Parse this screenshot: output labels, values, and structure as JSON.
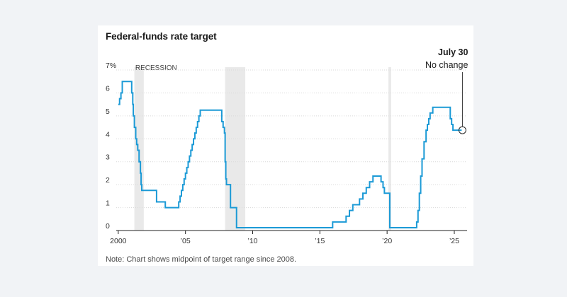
{
  "chart_data": {
    "type": "line",
    "title": "Federal-funds rate target",
    "note": "Note: Chart shows midpoint of target range since 2008.",
    "xlabel": "",
    "ylabel": "",
    "xlim": [
      1999.85,
      2025.95
    ],
    "ylim": [
      0,
      7
    ],
    "grid": true,
    "y_ticks": [
      {
        "value": 0,
        "label": "0"
      },
      {
        "value": 1,
        "label": "1"
      },
      {
        "value": 2,
        "label": "2"
      },
      {
        "value": 3,
        "label": "3"
      },
      {
        "value": 4,
        "label": "4"
      },
      {
        "value": 5,
        "label": "5"
      },
      {
        "value": 6,
        "label": "6"
      },
      {
        "value": 7,
        "label": "7%"
      }
    ],
    "x_ticks": [
      {
        "value": 2000,
        "label": "2000"
      },
      {
        "value": 2005,
        "label": "’05"
      },
      {
        "value": 2010,
        "label": "’10"
      },
      {
        "value": 2015,
        "label": "’15"
      },
      {
        "value": 2020,
        "label": "’20"
      },
      {
        "value": 2025,
        "label": "’25"
      }
    ],
    "recessions": [
      {
        "start": 2001.2,
        "end": 2001.9,
        "label": "RECESSION"
      },
      {
        "start": 2007.95,
        "end": 2009.45,
        "label": ""
      },
      {
        "start": 2020.1,
        "end": 2020.3,
        "label": ""
      }
    ],
    "series": [
      {
        "name": "Federal-funds rate target",
        "color": "#1b9ad6",
        "x": [
          2000.0,
          2000.1,
          2000.2,
          2000.3,
          2000.45,
          2001.0,
          2001.08,
          2001.12,
          2001.2,
          2001.3,
          2001.37,
          2001.45,
          2001.55,
          2001.65,
          2001.7,
          2001.75,
          2001.82,
          2001.9,
          2001.95,
          2002.85,
          2003.5,
          2004.5,
          2004.6,
          2004.7,
          2004.8,
          2004.9,
          2005.0,
          2005.1,
          2005.2,
          2005.3,
          2005.4,
          2005.5,
          2005.6,
          2005.7,
          2005.8,
          2005.9,
          2006.0,
          2006.1,
          2006.2,
          2006.3,
          2006.4,
          2006.5,
          2007.7,
          2007.8,
          2007.9,
          2007.95,
          2008.0,
          2008.05,
          2008.15,
          2008.25,
          2008.35,
          2008.8,
          2008.85,
          2008.95,
          2009.0,
          2015.95,
          2016.95,
          2017.2,
          2017.45,
          2017.95,
          2018.2,
          2018.45,
          2018.7,
          2018.95,
          2019.55,
          2019.7,
          2019.8,
          2020.2,
          2022.2,
          2022.3,
          2022.4,
          2022.5,
          2022.6,
          2022.75,
          2022.9,
          2023.0,
          2023.1,
          2023.2,
          2023.4,
          2023.55,
          2024.7,
          2024.8,
          2024.9,
          2025.55
        ],
        "values": [
          5.5,
          5.75,
          6.0,
          6.5,
          6.5,
          6.0,
          5.5,
          5.0,
          4.5,
          4.0,
          3.75,
          3.5,
          3.0,
          2.5,
          2.0,
          1.75,
          1.75,
          1.75,
          1.75,
          1.25,
          1.0,
          1.25,
          1.5,
          1.75,
          2.0,
          2.25,
          2.5,
          2.75,
          3.0,
          3.25,
          3.5,
          3.75,
          4.0,
          4.25,
          4.5,
          4.75,
          5.0,
          5.25,
          5.25,
          5.25,
          5.25,
          5.25,
          4.75,
          4.5,
          4.25,
          3.0,
          2.25,
          2.0,
          2.0,
          2.0,
          1.0,
          0.125,
          0.125,
          0.125,
          0.125,
          0.375,
          0.625,
          0.875,
          1.125,
          1.375,
          1.625,
          1.875,
          2.125,
          2.375,
          2.125,
          1.875,
          1.625,
          0.125,
          0.375,
          0.875,
          1.625,
          2.375,
          3.125,
          3.875,
          4.375,
          4.625,
          4.875,
          5.125,
          5.375,
          5.375,
          4.875,
          4.625,
          4.375,
          4.375
        ]
      }
    ],
    "annotation": {
      "x": 2025.55,
      "y": 4.375,
      "date": "July 30",
      "text": "No change"
    }
  }
}
